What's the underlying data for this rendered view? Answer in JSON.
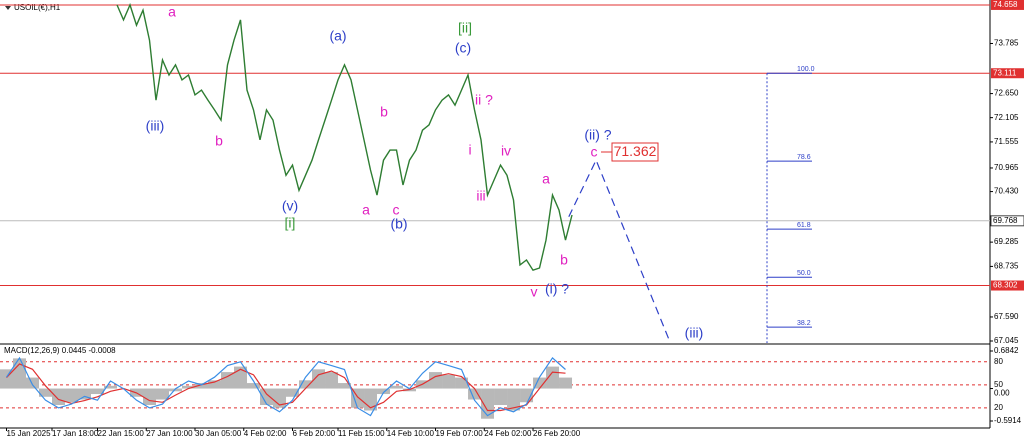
{
  "chart_data": {
    "type": "line",
    "title": "USOIL(€),H1",
    "series": [
      {
        "color": "#2e7d32",
        "x": [
          18,
          19,
          20,
          21,
          22,
          23,
          24,
          25,
          26,
          27,
          28,
          29,
          30,
          31,
          32,
          33,
          34,
          35,
          36,
          37,
          38,
          39,
          40,
          41,
          42,
          43,
          44,
          45,
          46,
          47,
          48,
          49,
          50,
          51,
          52,
          53,
          54,
          55,
          56,
          57,
          58,
          59,
          60,
          61,
          62,
          63,
          64,
          65,
          66,
          67,
          68,
          69,
          70,
          71,
          72,
          73,
          74,
          75,
          76,
          77,
          78,
          79,
          80,
          81,
          82,
          83,
          84,
          85,
          86,
          87,
          88
        ],
        "values": [
          74.66,
          74.32,
          74.66,
          74.2,
          74.54,
          73.86,
          72.5,
          73.41,
          73.07,
          73.3,
          72.96,
          73.07,
          72.62,
          72.73,
          72.5,
          72.28,
          72.05,
          73.3,
          73.86,
          74.32,
          72.73,
          72.28,
          71.6,
          72.28,
          72.05,
          71.37,
          70.8,
          71.03,
          70.46,
          70.8,
          71.14,
          71.6,
          72.05,
          72.5,
          72.96,
          73.3,
          72.96,
          72.28,
          71.6,
          70.92,
          70.35,
          71.14,
          71.37,
          71.37,
          70.58,
          71.14,
          71.37,
          71.82,
          71.94,
          72.28,
          72.5,
          72.62,
          72.39,
          72.73,
          73.07,
          72.28,
          71.6,
          70.35,
          70.69,
          71.03,
          70.8,
          70.24,
          68.77,
          68.88,
          68.65,
          68.7,
          69.33,
          70.35,
          70.01,
          69.33,
          69.9
        ]
      }
    ],
    "xlim": [
      0,
      152.3
    ],
    "xticks": [
      {
        "value": 1,
        "label": "15 Jan 2025"
      },
      {
        "value": 8,
        "label": "17 Jan 18:00"
      },
      {
        "value": 15,
        "label": "22 Jan 15:00"
      },
      {
        "value": 22.5,
        "label": "27 Jan 10:00"
      },
      {
        "value": 30,
        "label": "30 Jan 05:00"
      },
      {
        "value": 37.5,
        "label": "4 Feb 02:00"
      },
      {
        "value": 45,
        "label": "6 Feb 20:00"
      },
      {
        "value": 52,
        "label": "11 Feb 15:00"
      },
      {
        "value": 59.5,
        "label": "14 Feb 10:00"
      },
      {
        "value": 67,
        "label": "19 Feb 07:00"
      },
      {
        "value": 74.5,
        "label": "24 Feb 02:00"
      },
      {
        "value": 82,
        "label": "26 Feb 20:00"
      }
    ],
    "ylim": [
      67.0,
      74.77
    ],
    "yticks": [
      73.785,
      {
        "value": 72.65,
        "label": "72.650"
      },
      72.105,
      71.555,
      70.965,
      {
        "value": 70.43,
        "label": "70.430"
      },
      69.285,
      68.735,
      {
        "value": 67.59,
        "label": "67.590"
      },
      67.045
    ],
    "levels": [
      {
        "value": 74.658,
        "color": "#e03030"
      },
      {
        "value": 73.111,
        "color": "#e03030"
      },
      {
        "value": 68.302,
        "color": "#e03030"
      }
    ],
    "current_price": 69.768,
    "fib": [
      {
        "ratio": {
          "value": 100,
          "label": "100.0"
        },
        "price": 73.111
      },
      {
        "ratio": 78.6,
        "price": 71.12
      },
      {
        "ratio": 61.8,
        "price": 69.58
      },
      {
        "ratio": {
          "value": 50,
          "label": "50.0"
        },
        "price": 68.49
      },
      {
        "ratio": 38.2,
        "price": 67.36
      }
    ],
    "projection": {
      "color": "#2d3fc8",
      "x": [
        87.5,
        91.7,
        103
      ],
      "values": [
        69.86,
        71.14,
        67.05
      ]
    },
    "target": 71.362,
    "annotations": [
      {
        "text": "(iii)",
        "color": "#2d3fc8"
      },
      {
        "text": "a",
        "color": "#e020c0"
      },
      {
        "text": "b",
        "color": "#e020c0"
      },
      {
        "text": "(v)",
        "color": "#2d3fc8"
      },
      {
        "text": "[i]",
        "color": "#3a9a3a"
      },
      {
        "text": "(a)",
        "color": "#2d3fc8"
      },
      {
        "text": "b",
        "color": "#e020c0"
      },
      {
        "text": "a",
        "color": "#e020c0"
      },
      {
        "text": "c",
        "color": "#e020c0"
      },
      {
        "text": "(b)",
        "color": "#2d3fc8"
      },
      {
        "text": "[ii]",
        "color": "#3a9a3a"
      },
      {
        "text": "(c)",
        "color": "#2d3fc8"
      },
      {
        "text": "ii ?",
        "color": "#e020c0"
      },
      {
        "text": "i",
        "color": "#e020c0"
      },
      {
        "text": "iv",
        "color": "#e020c0"
      },
      {
        "text": "iii",
        "color": "#e020c0"
      },
      {
        "text": "a",
        "color": "#e020c0"
      },
      {
        "text": "b",
        "color": "#e020c0"
      },
      {
        "text": "v",
        "color": "#e020c0"
      },
      {
        "text": "(i) ?",
        "color": "#2d3fc8"
      },
      {
        "text": "(ii) ?",
        "color": "#2d3fc8"
      },
      {
        "text": "c",
        "color": "#e020c0"
      },
      {
        "text": "(iii)",
        "color": "#2d3fc8"
      }
    ],
    "macd": {
      "title": "MACD(12,26,9) 0.0445 -0.0008",
      "x": [
        1,
        3,
        5,
        7,
        9,
        11,
        13,
        15,
        17,
        19,
        21,
        23,
        25,
        27,
        29,
        31,
        33,
        35,
        37,
        39,
        41,
        43,
        45,
        47,
        49,
        51,
        53,
        55,
        57,
        59,
        61,
        63,
        65,
        67,
        69,
        71,
        73,
        75,
        77,
        79,
        81,
        83,
        85,
        87
      ],
      "histogram": [
        0.35,
        0.55,
        0.2,
        -0.15,
        -0.3,
        -0.25,
        -0.2,
        -0.1,
        0.05,
        0.0,
        -0.15,
        -0.3,
        -0.2,
        -0.05,
        0.05,
        0.1,
        0.15,
        0.3,
        0.4,
        0.1,
        -0.3,
        -0.35,
        -0.15,
        0.15,
        0.35,
        0.3,
        0.1,
        -0.35,
        -0.4,
        -0.1,
        0.05,
        -0.05,
        0.15,
        0.3,
        0.25,
        0.2,
        -0.2,
        -0.55,
        -0.3,
        -0.4,
        -0.25,
        0.2,
        0.4,
        0.2
      ],
      "signal": [
        0.2,
        0.45,
        0.35,
        0.05,
        -0.2,
        -0.27,
        -0.22,
        -0.15,
        -0.05,
        0.0,
        -0.08,
        -0.22,
        -0.25,
        -0.12,
        0.0,
        0.07,
        0.12,
        0.22,
        0.35,
        0.25,
        -0.1,
        -0.3,
        -0.25,
        0.0,
        0.25,
        0.32,
        0.2,
        -0.15,
        -0.35,
        -0.25,
        -0.05,
        -0.02,
        0.08,
        0.22,
        0.27,
        0.22,
        0.0,
        -0.4,
        -0.4,
        -0.35,
        -0.3,
        0.0,
        0.3,
        0.28
      ],
      "stoch": [
        60,
        85,
        50,
        30,
        20,
        25,
        35,
        30,
        55,
        45,
        30,
        20,
        25,
        45,
        55,
        50,
        60,
        75,
        80,
        55,
        25,
        15,
        30,
        60,
        80,
        75,
        70,
        20,
        10,
        40,
        55,
        45,
        65,
        80,
        75,
        70,
        30,
        10,
        20,
        15,
        25,
        60,
        85,
        70
      ],
      "ylim": [
        -0.5914,
        0.6842
      ],
      "yticks": [
        0.6842,
        {
          "value": 0,
          "label": "0.00"
        },
        -0.5914
      ],
      "y2lim": [
        3,
        94
      ],
      "y2ticks": [
        20,
        50,
        80
      ]
    }
  }
}
